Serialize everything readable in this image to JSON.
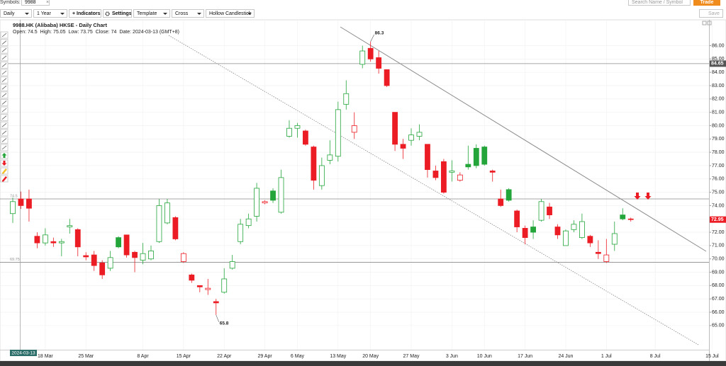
{
  "toolbar": {
    "symbols_label": "Symbols:",
    "symbol": "9988",
    "clear": "×",
    "interval": "Daily",
    "range": "1 Year",
    "indicators": "+ Indicators",
    "settings": "Settings",
    "template": "Template",
    "cursor": "Cross",
    "style": "Hollow Candlestick",
    "search_placeholder": "Search Name / Symbol",
    "trade": "Trade",
    "save": "Save"
  },
  "chart_data": {
    "type": "candlestick",
    "title": "9988.HK (Alibaba) HKSE - Daily Chart",
    "info": {
      "open_label": "Open:",
      "high_label": "High:",
      "low_label": "Low:",
      "close_label": "Close:",
      "date_label": "Date:",
      "date": "2024-03-13",
      "timezone": "(GMT+8)"
    },
    "categories": [
      null,
      null,
      null,
      null,
      "18 Mar",
      null,
      null,
      null,
      null,
      "25 Mar",
      null,
      null,
      null,
      null,
      null,
      null,
      "8 Apr",
      null,
      null,
      null,
      null,
      "15 Apr",
      null,
      null,
      null,
      null,
      "22 Apr",
      null,
      null,
      null,
      null,
      "29 Apr",
      null,
      null,
      null,
      "6 May",
      null,
      null,
      null,
      null,
      "13 May",
      null,
      null,
      null,
      "20 May",
      null,
      null,
      null,
      null,
      "27 May",
      null,
      null,
      null,
      null,
      "3 Jun",
      null,
      null,
      null,
      "10 Jun",
      null,
      null,
      null,
      null,
      "17 Jun",
      null,
      null,
      null,
      null,
      "24 Jun",
      null,
      null,
      null,
      null,
      "1 Jul",
      null,
      null,
      null,
      null,
      null,
      "8 Jul",
      null,
      null,
      null,
      null,
      null,
      null,
      "15 Jul"
    ],
    "open": [
      73.4,
      74.5,
      74.5,
      71.7,
      71.2,
      71.3,
      71.2,
      72.4,
      72.2,
      70.25,
      70.3,
      69.7,
      69.3,
      71.6,
      71.8,
      70.5,
      69.9,
      70.0,
      71.3,
      72.7,
      73.1,
      69.8,
      68.8,
      68.0,
      67.7,
      66.8,
      67.5,
      69.3,
      71.3,
      72.5,
      73.2,
      74.2,
      75.1,
      73.5,
      79.2,
      79.8,
      79.6,
      78.4,
      75.5,
      77.4,
      77.7,
      81.6,
      79.5,
      84.6,
      85.8,
      85.1,
      84.2,
      81.0,
      78.6,
      78.9,
      79.2,
      78.6,
      76.6,
      77.3,
      76.5,
      75.9,
      77.1,
      78.3,
      78.4,
      76.6,
      74.5,
      75.2,
      73.6,
      72.3,
      72.4,
      72.9,
      73.9,
      72.4,
      71.0,
      72.2,
      71.6,
      71.7,
      70.5,
      69.8,
      71.1,
      73.3,
      73.0,
      null,
      null,
      null,
      null,
      null,
      null,
      null,
      null,
      null,
      null
    ],
    "high": [
      74.6,
      75.05,
      75.2,
      72.0,
      72.3,
      71.6,
      71.5,
      73.0,
      72.3,
      70.5,
      70.6,
      69.9,
      70.6,
      71.7,
      71.8,
      70.6,
      71.2,
      71.0,
      74.5,
      74.5,
      73.2,
      70.5,
      68.9,
      68.0,
      68.5,
      67.0,
      69.3,
      70.3,
      73.0,
      73.4,
      75.7,
      74.4,
      75.3,
      76.7,
      80.4,
      80.2,
      79.7,
      78.5,
      77.6,
      78.9,
      81.8,
      83.4,
      81.0,
      86.0,
      86.3,
      85.6,
      84.2,
      81.0,
      79.0,
      79.8,
      80.1,
      78.6,
      77.0,
      77.5,
      77.4,
      76.5,
      78.5,
      78.6,
      78.5,
      76.7,
      75.2,
      75.3,
      73.7,
      72.5,
      72.9,
      74.5,
      74.2,
      72.6,
      72.2,
      72.9,
      73.4,
      71.8,
      71.4,
      71.5,
      72.8,
      73.8,
      73.1,
      null,
      null,
      null,
      null,
      null,
      null,
      null,
      null,
      null,
      null
    ],
    "low": [
      72.7,
      73.75,
      72.8,
      70.8,
      71.0,
      70.9,
      70.2,
      71.9,
      70.2,
      69.9,
      69.1,
      68.5,
      69.1,
      70.8,
      70.1,
      69.0,
      69.6,
      69.9,
      71.2,
      72.6,
      71.4,
      69.7,
      68.2,
      67.5,
      67.3,
      65.8,
      67.4,
      69.2,
      71.1,
      72.3,
      72.8,
      74.1,
      74.2,
      73.4,
      79.1,
      79.1,
      78.5,
      75.2,
      75.2,
      77.1,
      77.3,
      81.2,
      79.0,
      84.3,
      84.8,
      83.9,
      82.9,
      78.1,
      77.5,
      78.5,
      78.9,
      76.1,
      75.9,
      74.9,
      75.8,
      75.8,
      76.7,
      76.8,
      77.0,
      75.8,
      73.9,
      74.3,
      72.0,
      71.1,
      71.5,
      72.8,
      73.0,
      71.5,
      71.0,
      72.0,
      71.5,
      70.9,
      70.0,
      69.7,
      70.6,
      72.9,
      72.8,
      null,
      null,
      null,
      null,
      null,
      null,
      null,
      null,
      null,
      null
    ],
    "close": [
      74.3,
      74,
      73.8,
      71.2,
      71.8,
      71.2,
      71.3,
      72.5,
      70.9,
      70.15,
      69.5,
      68.8,
      70.1,
      70.9,
      70.3,
      70.1,
      70.4,
      70.6,
      74.0,
      74.2,
      71.5,
      70.4,
      68.4,
      67.9,
      67.8,
      66.7,
      68.5,
      69.8,
      72.6,
      73.0,
      75.3,
      74.3,
      74.4,
      76.1,
      79.8,
      80.0,
      78.6,
      75.9,
      77.0,
      77.8,
      81.2,
      82.4,
      80.0,
      85.6,
      85.0,
      84.3,
      83.0,
      78.6,
      78.3,
      79.3,
      79.5,
      76.7,
      76.1,
      75.0,
      76.6,
      76.3,
      76.9,
      77.0,
      77.1,
      76.5,
      74.0,
      74.4,
      72.4,
      71.6,
      72.0,
      74.3,
      73.3,
      71.8,
      72.1,
      72.6,
      72.8,
      71.2,
      70.4,
      70.3,
      71.9,
      73.0,
      72.95,
      null,
      null,
      null,
      null,
      null,
      null,
      null,
      null,
      null,
      null
    ],
    "up_color": "#23a53a",
    "down_color": "#ec1c24",
    "ylim": [
      63.4,
      87.3
    ],
    "yticks": [
      {
        "value": 65,
        "label": "65.00"
      },
      {
        "value": 66,
        "label": "66.00"
      },
      {
        "value": 67,
        "label": "67.00"
      },
      {
        "value": 68,
        "label": "68.00"
      },
      {
        "value": 69,
        "label": "69.00"
      },
      {
        "value": 70,
        "label": "70.00"
      },
      {
        "value": 71,
        "label": "71.00"
      },
      {
        "value": 72,
        "label": "72.00"
      },
      {
        "value": 73,
        "label": "73.00"
      },
      {
        "value": 74,
        "label": "74.00"
      },
      {
        "value": 75,
        "label": "75.00"
      },
      {
        "value": 76,
        "label": "76.00"
      },
      {
        "value": 77,
        "label": "77.00"
      },
      {
        "value": 78,
        "label": "78.00"
      },
      {
        "value": 79,
        "label": "79.00"
      },
      {
        "value": 80,
        "label": "80.00"
      },
      {
        "value": 81,
        "label": "81.00"
      },
      {
        "value": 82,
        "label": "82.00"
      },
      {
        "value": 83,
        "label": "83.00"
      },
      {
        "value": 84,
        "label": "84.00"
      },
      {
        "value": 85,
        "label": "85.00"
      },
      {
        "value": 86,
        "label": "86.00"
      }
    ],
    "hlines": [
      84.65,
      74.5,
      69.75
    ],
    "hline_color": "#8a8a8a",
    "grid": true
  }
}
